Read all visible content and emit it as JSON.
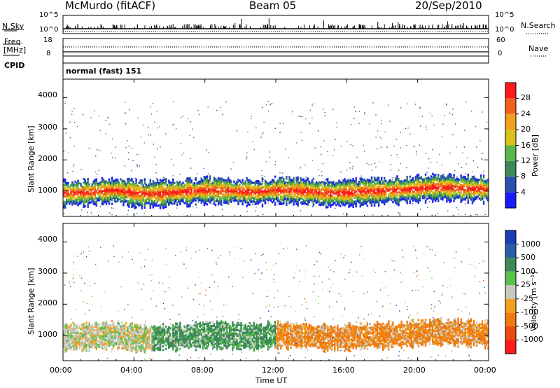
{
  "header": {
    "station": "McMurdo (fitACF)",
    "beam": "Beam 05",
    "date": "20/Sep/2010"
  },
  "summary": {
    "nsky_label": "N.Sky",
    "nsky_ticks": [
      "10^5",
      "10^0"
    ],
    "nsearch_label": "N.Search",
    "nsearch_ticks": [
      "10^5",
      "10^0"
    ],
    "freq_label_line1": "Freq.",
    "freq_label_line2": "[MHz]",
    "freq_ticks": [
      "18",
      "8"
    ],
    "nave_label": "Nave",
    "nave_ticks": [
      "60",
      "0"
    ],
    "cpid_label": "CPID",
    "cpid_value": "normal (fast) 151"
  },
  "chart_data": [
    {
      "type": "heatmap",
      "name": "power",
      "ylabel": "Slant Range [km]",
      "yticks": [
        "4000",
        "3000",
        "2000",
        "1000"
      ],
      "ylim": [
        180,
        4600
      ],
      "colorbar_label": "Power [dB]",
      "colorbar_ticks": [
        "28",
        "24",
        "20",
        "16",
        "12",
        "8",
        "4"
      ],
      "colorbar_colors": [
        "#1a1aff",
        "#2b4fb0",
        "#3c8a5a",
        "#59b84a",
        "#d9c21a",
        "#f0a020",
        "#f0601a",
        "#ff1a1a"
      ],
      "scatter_band": {
        "center_km": [
          900,
          920,
          960,
          1000,
          900,
          880,
          920,
          950,
          1000,
          980,
          960,
          940,
          1000,
          980,
          950,
          900,
          920,
          960,
          980,
          1000,
          1050,
          1100,
          1080,
          1050,
          1020
        ],
        "hours": [
          0,
          1,
          2,
          3,
          4,
          5,
          6,
          7,
          8,
          9,
          10,
          11,
          12,
          13,
          14,
          15,
          16,
          17,
          18,
          19,
          20,
          21,
          22,
          23,
          24
        ]
      }
    },
    {
      "type": "heatmap",
      "name": "velocity",
      "ylabel": "Slant Range [km]",
      "yticks": [
        "4000",
        "3000",
        "2000",
        "1000"
      ],
      "ylim": [
        180,
        4600
      ],
      "colorbar_label": "Velocity [m s⁻¹]",
      "colorbar_ticks": [
        "1000",
        "500",
        "100",
        "25",
        "-25",
        "-100",
        "-500",
        "-1000"
      ],
      "colorbar_colors": [
        "#1a3cb4",
        "#2a5fa8",
        "#3c8a5a",
        "#59c24a",
        "#c8c8c0",
        "#f0a020",
        "#f07a10",
        "#e84a10",
        "#ff1a1a"
      ]
    }
  ],
  "xaxis": {
    "label": "Time UT",
    "ticks": [
      "00:00",
      "04:00",
      "08:00",
      "12:00",
      "16:00",
      "20:00",
      "00:00"
    ]
  }
}
